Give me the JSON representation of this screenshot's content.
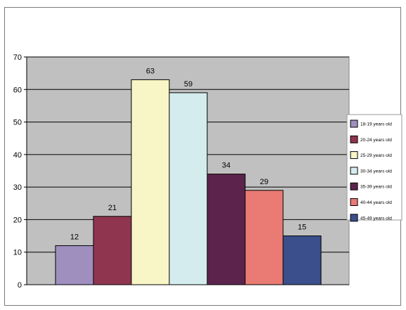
{
  "chart_data": {
    "type": "bar",
    "title": "",
    "xlabel": "",
    "ylabel": "",
    "ylim": [
      0,
      70
    ],
    "yticks": [
      0,
      10,
      20,
      30,
      40,
      50,
      60,
      70
    ],
    "grid": true,
    "legend_position": "right",
    "plot_background": "#c0c0c0",
    "series": [
      {
        "name": "18-19 years old",
        "value": 12,
        "color": "#9f8fbf"
      },
      {
        "name": "20-24 years old",
        "value": 21,
        "color": "#8f3550"
      },
      {
        "name": "25-29 years old",
        "value": 63,
        "color": "#f8f5c6"
      },
      {
        "name": "30-34 years old",
        "value": 59,
        "color": "#d4ecee"
      },
      {
        "name": "35-39 years old",
        "value": 34,
        "color": "#5c244c"
      },
      {
        "name": "40-44 years old",
        "value": 29,
        "color": "#e97a74"
      },
      {
        "name": "45-49 years old",
        "value": 15,
        "color": "#3b4f8c"
      }
    ]
  }
}
